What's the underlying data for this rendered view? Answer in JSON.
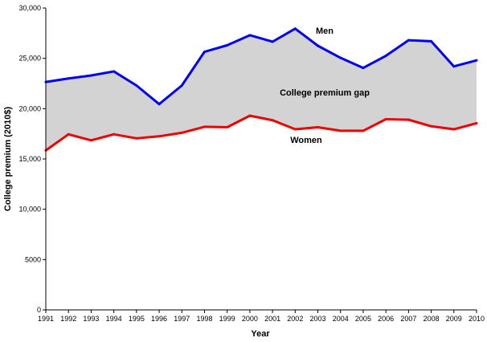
{
  "chart_data": {
    "type": "line",
    "title": "",
    "xlabel": "Year",
    "ylabel": "College premium (2010$)",
    "x": [
      1991,
      1992,
      1993,
      1994,
      1995,
      1996,
      1997,
      1998,
      1999,
      2000,
      2001,
      2002,
      2003,
      2004,
      2005,
      2006,
      2007,
      2008,
      2009,
      2010
    ],
    "series": [
      {
        "name": "Men",
        "color": "#0000ee",
        "values": [
          22650,
          23000,
          23300,
          23700,
          22300,
          20450,
          22300,
          25650,
          26300,
          27300,
          26650,
          27950,
          26250,
          25050,
          24050,
          25250,
          26800,
          26700,
          24200,
          24800
        ]
      },
      {
        "name": "Women",
        "color": "#ee0000",
        "values": [
          15850,
          17450,
          16850,
          17450,
          17050,
          17250,
          17600,
          18200,
          18150,
          19300,
          18850,
          17950,
          18150,
          17800,
          17800,
          18950,
          18900,
          18250,
          17950,
          18550
        ]
      }
    ],
    "fill_between": {
      "label": "College premium gap",
      "color": "#d3d3d3"
    },
    "ylim": [
      0,
      30000
    ],
    "yticks": [
      0,
      5000,
      10000,
      15000,
      20000,
      25000,
      30000
    ],
    "ytick_labels": [
      "0",
      "5000",
      "10,000",
      "15,000",
      "20,000",
      "25,000",
      "30,000"
    ],
    "grid": false,
    "legend": "none"
  }
}
